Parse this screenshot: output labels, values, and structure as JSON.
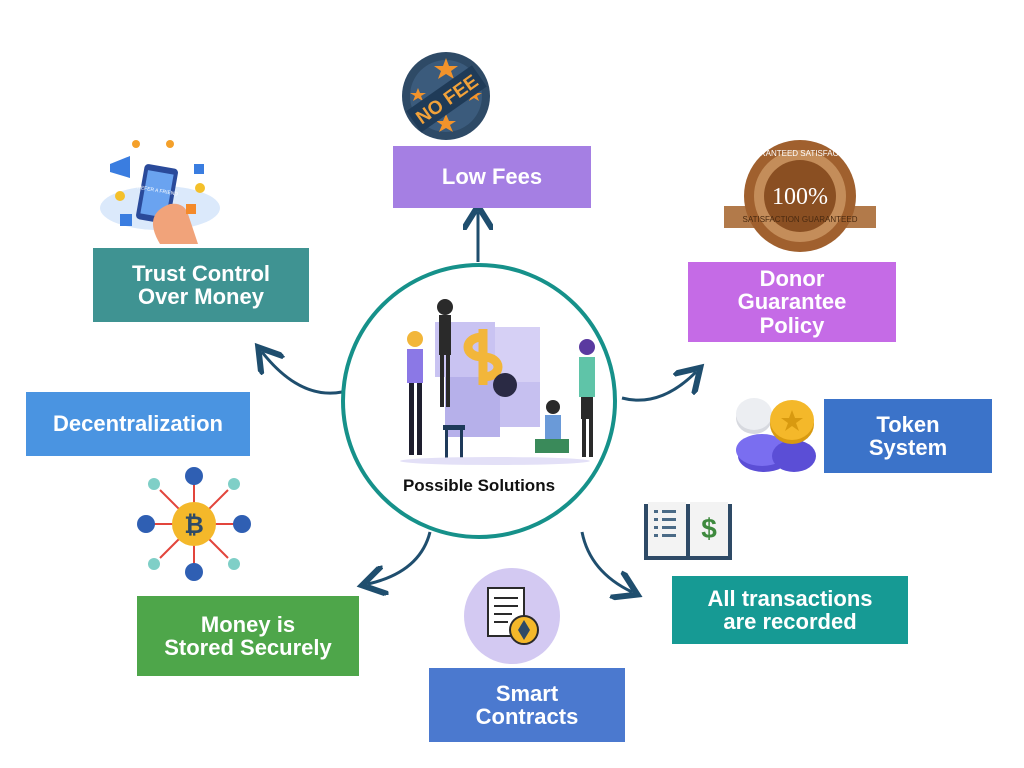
{
  "center": {
    "label": "Possible Solutions"
  },
  "nodes": [
    {
      "id": "low-fees",
      "label": "Low Fees",
      "color": "#a57fe3"
    },
    {
      "id": "donor",
      "label": "Donor\nGuarantee\nPolicy",
      "color": "#c56be6"
    },
    {
      "id": "token",
      "label": "Token\nSystem",
      "color": "#3b73c9"
    },
    {
      "id": "transactions",
      "label": "All transactions\nare recorded",
      "color": "#169a94"
    },
    {
      "id": "smart",
      "label": "Smart\nContracts",
      "color": "#4b79cf"
    },
    {
      "id": "money",
      "label": "Money is\nStored Securely",
      "color": "#4ea64a"
    },
    {
      "id": "decentral",
      "label": "Decentralization",
      "color": "#4a94e1"
    },
    {
      "id": "trust",
      "label": "Trust Control\nOver Money",
      "color": "#3f9392"
    }
  ],
  "icons": {
    "no_fee_badge": "NO FEE",
    "seal_top": "GUARANTEED SATISFACTION",
    "seal_center": "100%",
    "seal_bottom": "SATISFACTION GUARANTEED",
    "phone_text": "REFER A FRIEND",
    "bitcoin_symbol": "₿",
    "dollar_symbol": "$"
  },
  "colors": {
    "circle_border": "#16918a",
    "arrow": "#1f4e6e"
  }
}
